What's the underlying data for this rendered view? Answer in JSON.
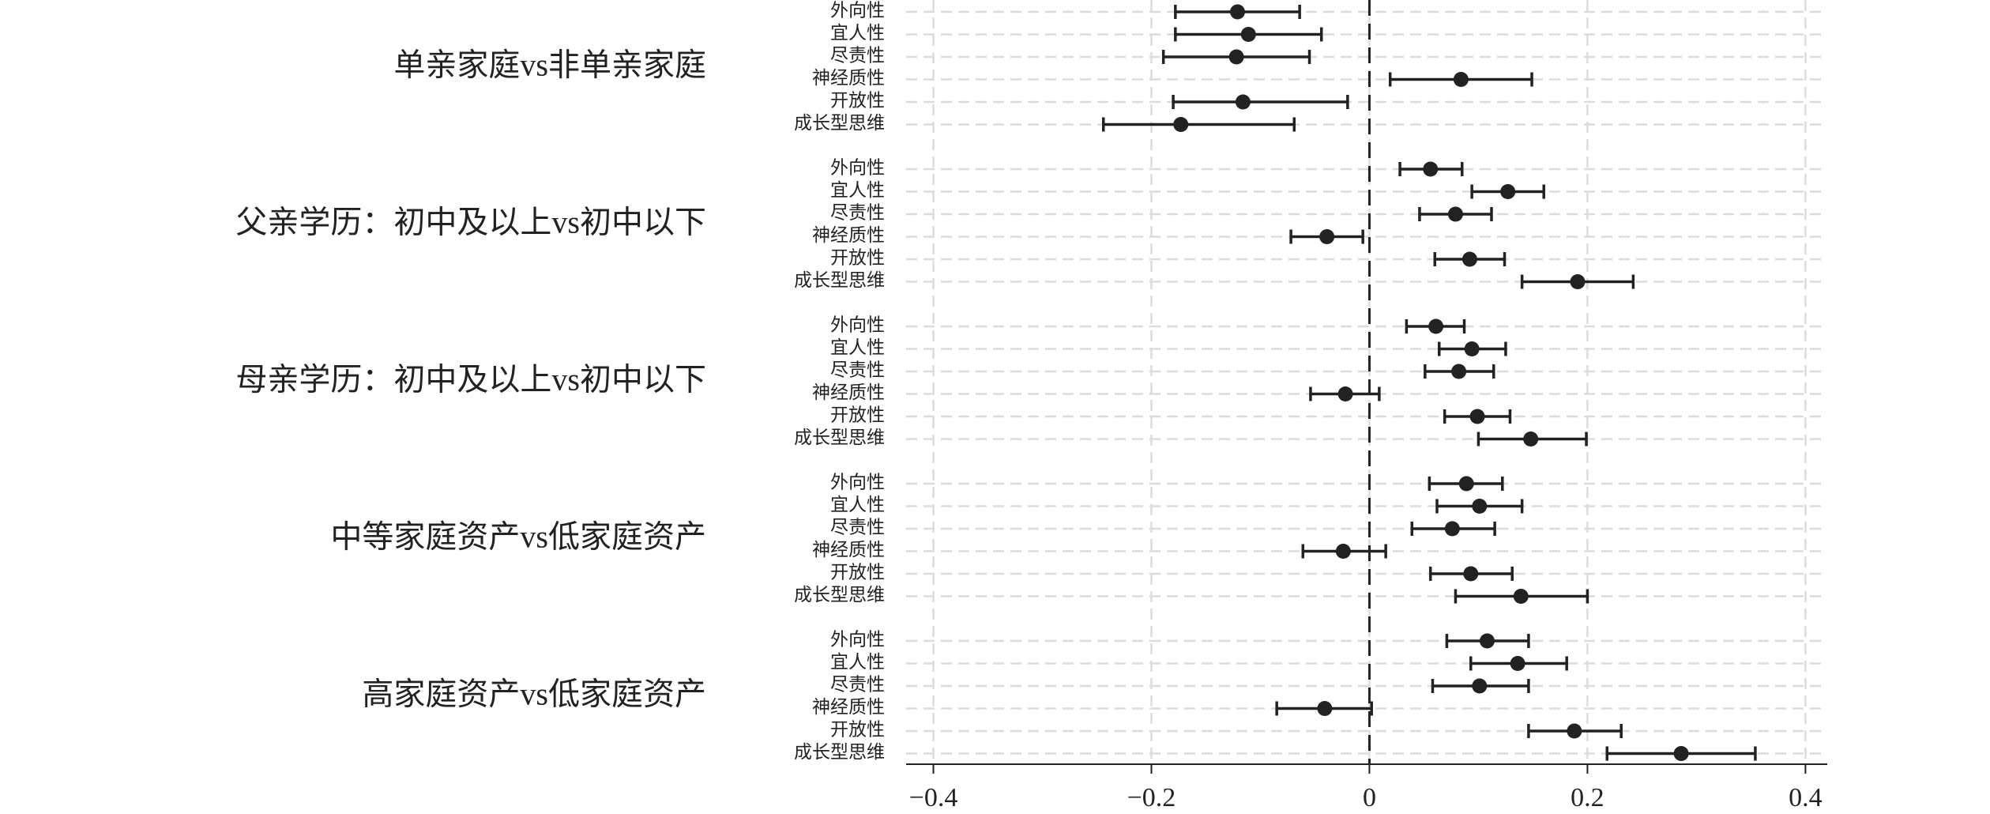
{
  "chart_data": {
    "type": "coefplot",
    "xlim": [
      -0.425,
      0.42
    ],
    "xticks": [
      {
        "value": -0.4,
        "label": "−0.4"
      },
      {
        "value": -0.2,
        "label": "−0.2"
      },
      0,
      0.2,
      0.4
    ],
    "reference_line": 0,
    "grid": true,
    "color": "#222222",
    "groups": [
      {
        "name": "单亲家庭vs非单亲家庭",
        "categories": [
          "外向性",
          "宜人性",
          "尽责性",
          "神经质性",
          "开放性",
          "成长型思维"
        ],
        "values": [
          -0.121,
          -0.111,
          -0.122,
          0.084,
          -0.116,
          -0.173
        ],
        "lower": [
          -0.178,
          -0.178,
          -0.189,
          0.019,
          -0.18,
          -0.244
        ],
        "upper": [
          -0.064,
          -0.044,
          -0.055,
          0.149,
          -0.02,
          -0.069
        ]
      },
      {
        "name": "父亲学历：初中及以上vs初中以下",
        "categories": [
          "外向性",
          "宜人性",
          "尽责性",
          "神经质性",
          "开放性",
          "成长型思维"
        ],
        "values": [
          0.056,
          0.127,
          0.079,
          -0.039,
          0.092,
          0.191
        ],
        "lower": [
          0.028,
          0.094,
          0.046,
          -0.072,
          0.06,
          0.14
        ],
        "upper": [
          0.085,
          0.16,
          0.112,
          -0.006,
          0.124,
          0.242
        ]
      },
      {
        "name": "母亲学历：初中及以上vs初中以下",
        "categories": [
          "外向性",
          "宜人性",
          "尽责性",
          "神经质性",
          "开放性",
          "成长型思维"
        ],
        "values": [
          0.061,
          0.094,
          0.082,
          -0.022,
          0.099,
          0.148
        ],
        "lower": [
          0.034,
          0.064,
          0.051,
          -0.054,
          0.069,
          0.1
        ],
        "upper": [
          0.087,
          0.125,
          0.114,
          0.009,
          0.129,
          0.199
        ]
      },
      {
        "name": "中等家庭资产vs低家庭资产",
        "categories": [
          "外向性",
          "宜人性",
          "尽责性",
          "神经质性",
          "开放性",
          "成长型思维"
        ],
        "values": [
          0.089,
          0.101,
          0.076,
          -0.024,
          0.093,
          0.139
        ],
        "lower": [
          0.055,
          0.062,
          0.039,
          -0.061,
          0.056,
          0.079
        ],
        "upper": [
          0.122,
          0.14,
          0.115,
          0.015,
          0.131,
          0.2
        ]
      },
      {
        "name": "高家庭资产vs低家庭资产",
        "categories": [
          "外向性",
          "宜人性",
          "尽责性",
          "神经质性",
          "开放性",
          "成长型思维"
        ],
        "values": [
          0.108,
          0.136,
          0.101,
          -0.041,
          0.188,
          0.286
        ],
        "lower": [
          0.071,
          0.093,
          0.058,
          -0.085,
          0.146,
          0.218
        ],
        "upper": [
          0.146,
          0.181,
          0.146,
          0.002,
          0.231,
          0.354
        ]
      }
    ]
  }
}
